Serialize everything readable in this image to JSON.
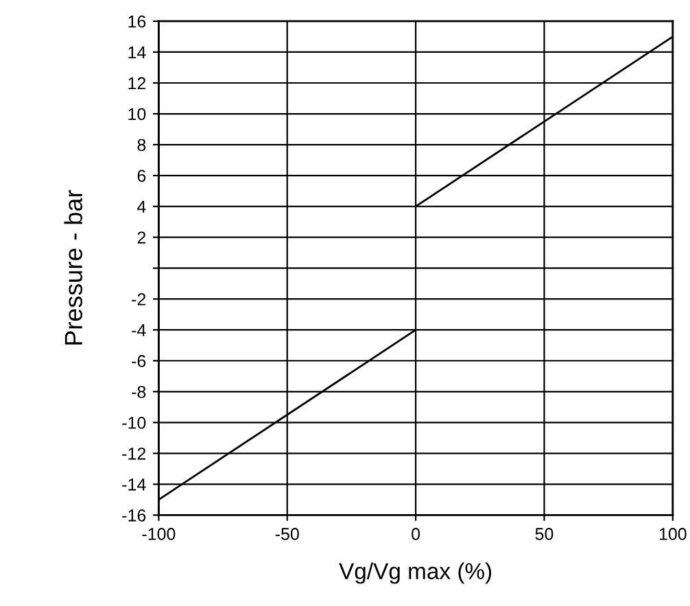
{
  "chart_data": {
    "type": "line",
    "xlabel": "Vg/Vg max (%)",
    "ylabel": "Pressure - bar",
    "series": [
      {
        "color": "#000000",
        "x": [
          -100,
          0
        ],
        "values": [
          -15,
          -4
        ]
      },
      {
        "color": "#000000",
        "x": [
          0,
          100
        ],
        "values": [
          4,
          15
        ]
      }
    ],
    "xlim": [
      -100,
      100
    ],
    "xticks": [
      -100,
      -50,
      0,
      50,
      100
    ],
    "ylim": [
      -16,
      16
    ],
    "yticks": [
      -16,
      -14,
      -12,
      -10,
      -8,
      -6,
      -4,
      -2,
      {
        "value": 0,
        "label": null
      },
      2,
      4,
      6,
      8,
      10,
      12,
      14,
      16
    ],
    "grid": true,
    "marker": "none",
    "line_style": "solid"
  }
}
